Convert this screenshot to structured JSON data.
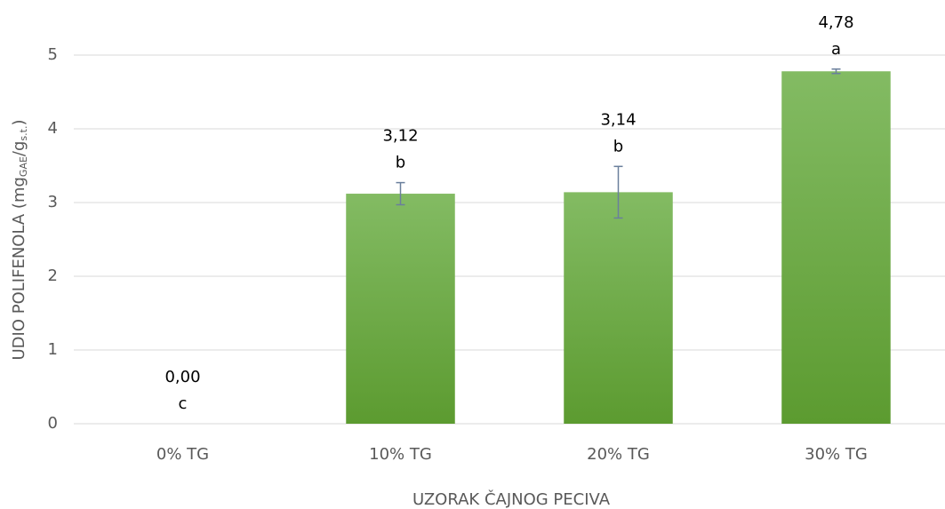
{
  "chart_data": {
    "type": "bar",
    "categories": [
      "0% TG",
      "10% TG",
      "20% TG",
      "30% TG"
    ],
    "values": [
      0,
      3.12,
      3.14,
      4.78
    ],
    "value_labels": [
      "0,00",
      "3,12",
      "3,14",
      "4,78"
    ],
    "errors": [
      0,
      0.15,
      0.35,
      0.03
    ],
    "annotations": [
      "c",
      "b",
      "b",
      "a"
    ],
    "color": "#70ad47",
    "ylim": [
      0,
      5
    ],
    "yticks": [
      0,
      1,
      2,
      3,
      4,
      5
    ],
    "grid": true,
    "xlabel": "UZORAK ČAJNOG PECIVA",
    "ylabel": [
      "UDIO POLIFENOLA (mg",
      "GAE",
      "/g",
      "s.t.",
      ")"
    ]
  }
}
